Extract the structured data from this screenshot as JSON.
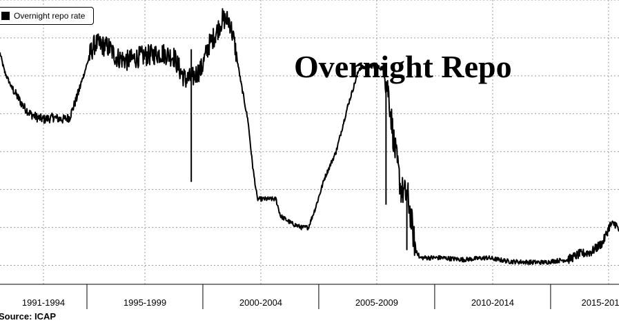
{
  "chart_data": {
    "type": "line",
    "title": "Overnight Repo",
    "source": "Source: ICAP",
    "series": [
      {
        "name": "Overnight repo rate",
        "color": "#000000",
        "points": [
          [
            1991.0,
            5.6
          ],
          [
            1991.2,
            5.1
          ],
          [
            1991.5,
            4.7
          ],
          [
            1991.8,
            4.4
          ],
          [
            1992.0,
            4.2
          ],
          [
            1992.3,
            4.0
          ],
          [
            1992.6,
            3.9
          ],
          [
            1992.9,
            3.85
          ],
          [
            1993.3,
            3.9
          ],
          [
            1993.7,
            3.85
          ],
          [
            1994.0,
            3.9
          ],
          [
            1994.3,
            4.4
          ],
          [
            1994.6,
            5.0
          ],
          [
            1994.9,
            5.6
          ],
          [
            1995.1,
            5.85
          ],
          [
            1995.4,
            5.8
          ],
          [
            1995.7,
            5.75
          ],
          [
            1996.0,
            5.5
          ],
          [
            1996.5,
            5.4
          ],
          [
            1997.0,
            5.5
          ],
          [
            1997.5,
            5.55
          ],
          [
            1998.0,
            5.6
          ],
          [
            1998.5,
            5.5
          ],
          [
            1998.8,
            5.1
          ],
          [
            1999.0,
            4.9
          ],
          [
            1999.3,
            4.95
          ],
          [
            1999.7,
            5.2
          ],
          [
            2000.0,
            5.8
          ],
          [
            2000.3,
            6.1
          ],
          [
            2000.6,
            6.5
          ],
          [
            2000.9,
            6.45
          ],
          [
            2001.1,
            5.9
          ],
          [
            2001.4,
            4.8
          ],
          [
            2001.7,
            3.8
          ],
          [
            2001.9,
            2.6
          ],
          [
            2002.1,
            1.75
          ],
          [
            2002.5,
            1.75
          ],
          [
            2002.9,
            1.75
          ],
          [
            2003.1,
            1.3
          ],
          [
            2003.6,
            1.1
          ],
          [
            2004.0,
            1.0
          ],
          [
            2004.3,
            1.0
          ],
          [
            2004.6,
            1.5
          ],
          [
            2005.0,
            2.3
          ],
          [
            2005.5,
            3.0
          ],
          [
            2006.0,
            4.2
          ],
          [
            2006.5,
            5.2
          ],
          [
            2007.0,
            5.25
          ],
          [
            2007.5,
            5.2
          ],
          [
            2007.75,
            4.6
          ],
          [
            2008.0,
            3.2
          ],
          [
            2008.3,
            2.0
          ],
          [
            2008.6,
            1.8
          ],
          [
            2008.9,
            0.5
          ],
          [
            2009.1,
            0.2
          ],
          [
            2010.0,
            0.2
          ],
          [
            2011.0,
            0.15
          ],
          [
            2012.0,
            0.2
          ],
          [
            2013.0,
            0.1
          ],
          [
            2014.0,
            0.08
          ],
          [
            2014.5,
            0.08
          ],
          [
            2015.0,
            0.12
          ],
          [
            2015.5,
            0.15
          ],
          [
            2016.0,
            0.3
          ],
          [
            2016.5,
            0.35
          ],
          [
            2017.0,
            0.6
          ],
          [
            2017.3,
            1.05
          ],
          [
            2017.55,
            1.1
          ],
          [
            2017.7,
            0.9
          ]
        ]
      }
    ],
    "x_categories": [
      "1991-1994",
      "1995-1999",
      "2000-2004",
      "2005-2009",
      "2010-2014",
      "2015-201"
    ],
    "x_category_bounds": [
      [
        1991,
        1994.75
      ],
      [
        1994.75,
        1999.75
      ],
      [
        1999.75,
        2004.75
      ],
      [
        2004.75,
        2009.75
      ],
      [
        2009.75,
        2014.75
      ],
      [
        2014.75,
        2019.75
      ]
    ],
    "xlim": [
      1991.0,
      2017.7
    ],
    "ylim": [
      -0.5,
      7.0
    ],
    "y_grid": [
      0,
      1,
      2,
      3,
      4,
      5,
      6,
      7
    ],
    "grid": true,
    "grid_style": "dotted",
    "legend_position": "top-left",
    "line_color": "#000000"
  }
}
